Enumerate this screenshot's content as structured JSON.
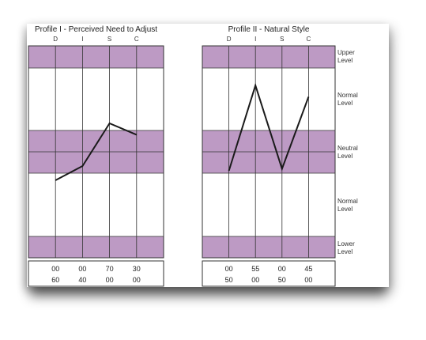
{
  "colors": {
    "band": "#bd9ac4",
    "grid": "#333333",
    "line": "#1a1a1a"
  },
  "level_labels": [
    [
      "Upper",
      "Level"
    ],
    [
      "Normal",
      "Level"
    ],
    [
      "Neutral",
      "Level"
    ],
    [
      "Normal",
      "Level"
    ],
    [
      "Lower",
      "Level"
    ]
  ],
  "chart_data": [
    {
      "type": "line",
      "title": "Profile I - Perceived Need to Adjust",
      "categories": [
        "D",
        "I",
        "S",
        "C"
      ],
      "values": [
        -30,
        -15,
        30,
        18
      ],
      "ylim": [
        -100,
        100
      ],
      "scores": [
        [
          "00",
          "60"
        ],
        [
          "00",
          "40"
        ],
        [
          "70",
          "00"
        ],
        [
          "30",
          "00"
        ]
      ]
    },
    {
      "type": "line",
      "title": "Profile II - Natural Style",
      "categories": [
        "D",
        "I",
        "S",
        "C"
      ],
      "values": [
        -20,
        70,
        -18,
        58
      ],
      "ylim": [
        -100,
        100
      ],
      "scores": [
        [
          "00",
          "50"
        ],
        [
          "55",
          "00"
        ],
        [
          "00",
          "50"
        ],
        [
          "45",
          "00"
        ]
      ]
    }
  ]
}
